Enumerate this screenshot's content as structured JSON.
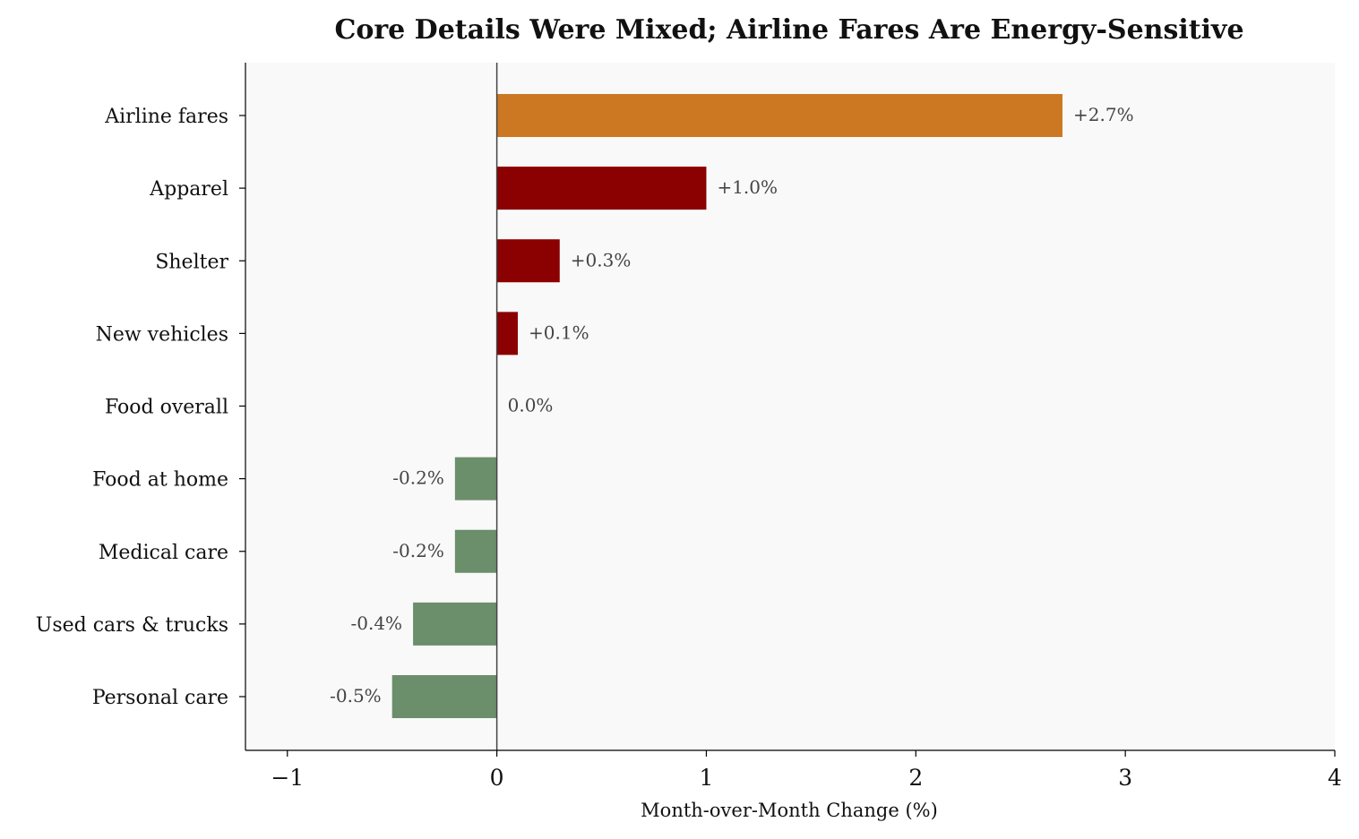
{
  "chart_data": {
    "type": "bar",
    "orientation": "horizontal",
    "title": "Core Details Were Mixed; Airline Fares Are Energy-Sensitive",
    "xlabel": "Month-over-Month Change (%)",
    "ylabel": "",
    "xlim": [
      -1.2,
      4
    ],
    "xticks": [
      -1,
      0,
      1,
      2,
      3,
      4
    ],
    "xtick_labels": [
      "−1",
      "0",
      "1",
      "2",
      "3",
      "4"
    ],
    "categories": [
      "Airline fares",
      "Apparel",
      "Shelter",
      "New vehicles",
      "Food overall",
      "Food at home",
      "Medical care",
      "Used cars & trucks",
      "Personal care"
    ],
    "values": [
      2.7,
      1.0,
      0.3,
      0.1,
      0.0,
      -0.2,
      -0.2,
      -0.4,
      -0.5
    ],
    "data_labels": [
      "+2.7%",
      "+1.0%",
      "+0.3%",
      "+0.1%",
      "0.0%",
      "-0.2%",
      "-0.2%",
      "-0.4%",
      "-0.5%"
    ],
    "bar_colors": [
      "#cc7722",
      "#8b0000",
      "#8b0000",
      "#8b0000",
      "#8b0000",
      "#6b8e6b",
      "#6b8e6b",
      "#6b8e6b",
      "#6b8e6b"
    ],
    "background": "#f9f9f9",
    "zero_line_color": "#444444",
    "grid": false
  }
}
